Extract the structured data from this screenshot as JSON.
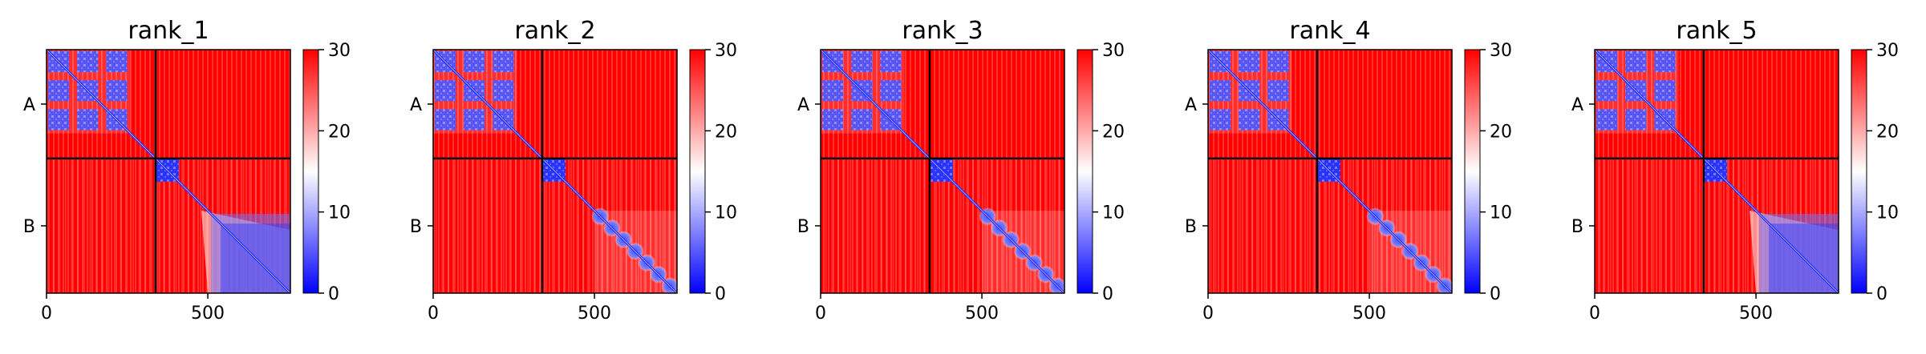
{
  "chart_data": [
    {
      "type": "heatmap",
      "title": "rank_1",
      "x_ticks": [
        {
          "value": 0,
          "label": "0"
        },
        {
          "value": 500,
          "label": "500"
        }
      ],
      "xlim": [
        0,
        756
      ],
      "ylim": [
        756,
        0
      ],
      "chain_boundary": 338,
      "y_labels": [
        {
          "label": "A",
          "position": 169
        },
        {
          "label": "B",
          "position": 547
        }
      ],
      "colorbar": {
        "min": 0,
        "max": 30,
        "ticks": [
          {
            "value": 0,
            "label": "0"
          },
          {
            "value": 10,
            "label": "10"
          },
          {
            "value": 20,
            "label": "20"
          },
          {
            "value": 30,
            "label": "30"
          }
        ],
        "colors": [
          "#0000ff",
          "#ffffff",
          "#ff0000"
        ]
      },
      "blue_regions": [
        [
          0,
          260
        ],
        [
          338,
          410
        ],
        [
          500,
          756
        ]
      ],
      "chain_b_style": "smooth"
    },
    {
      "type": "heatmap",
      "title": "rank_2",
      "x_ticks": [
        {
          "value": 0,
          "label": "0"
        },
        {
          "value": 500,
          "label": "500"
        }
      ],
      "xlim": [
        0,
        756
      ],
      "ylim": [
        756,
        0
      ],
      "chain_boundary": 338,
      "y_labels": [
        {
          "label": "A",
          "position": 169
        },
        {
          "label": "B",
          "position": 547
        }
      ],
      "colorbar": {
        "min": 0,
        "max": 30,
        "ticks": [
          {
            "value": 0,
            "label": "0"
          },
          {
            "value": 10,
            "label": "10"
          },
          {
            "value": 20,
            "label": "20"
          },
          {
            "value": 30,
            "label": "30"
          }
        ],
        "colors": [
          "#0000ff",
          "#ffffff",
          "#ff0000"
        ]
      },
      "blue_regions": [
        [
          0,
          260
        ],
        [
          338,
          410
        ],
        [
          500,
          756
        ]
      ],
      "chain_b_style": "beaded"
    },
    {
      "type": "heatmap",
      "title": "rank_3",
      "x_ticks": [
        {
          "value": 0,
          "label": "0"
        },
        {
          "value": 500,
          "label": "500"
        }
      ],
      "xlim": [
        0,
        756
      ],
      "ylim": [
        756,
        0
      ],
      "chain_boundary": 338,
      "y_labels": [
        {
          "label": "A",
          "position": 169
        },
        {
          "label": "B",
          "position": 547
        }
      ],
      "colorbar": {
        "min": 0,
        "max": 30,
        "ticks": [
          {
            "value": 0,
            "label": "0"
          },
          {
            "value": 10,
            "label": "10"
          },
          {
            "value": 20,
            "label": "20"
          },
          {
            "value": 30,
            "label": "30"
          }
        ],
        "colors": [
          "#0000ff",
          "#ffffff",
          "#ff0000"
        ]
      },
      "blue_regions": [
        [
          0,
          260
        ],
        [
          338,
          410
        ],
        [
          500,
          756
        ]
      ],
      "chain_b_style": "beaded"
    },
    {
      "type": "heatmap",
      "title": "rank_4",
      "x_ticks": [
        {
          "value": 0,
          "label": "0"
        },
        {
          "value": 500,
          "label": "500"
        }
      ],
      "xlim": [
        0,
        756
      ],
      "ylim": [
        756,
        0
      ],
      "chain_boundary": 338,
      "y_labels": [
        {
          "label": "A",
          "position": 169
        },
        {
          "label": "B",
          "position": 547
        }
      ],
      "colorbar": {
        "min": 0,
        "max": 30,
        "ticks": [
          {
            "value": 0,
            "label": "0"
          },
          {
            "value": 10,
            "label": "10"
          },
          {
            "value": 20,
            "label": "20"
          },
          {
            "value": 30,
            "label": "30"
          }
        ],
        "colors": [
          "#0000ff",
          "#ffffff",
          "#ff0000"
        ]
      },
      "blue_regions": [
        [
          0,
          260
        ],
        [
          338,
          410
        ],
        [
          500,
          756
        ]
      ],
      "chain_b_style": "beaded"
    },
    {
      "type": "heatmap",
      "title": "rank_5",
      "x_ticks": [
        {
          "value": 0,
          "label": "0"
        },
        {
          "value": 500,
          "label": "500"
        }
      ],
      "xlim": [
        0,
        756
      ],
      "ylim": [
        756,
        0
      ],
      "chain_boundary": 338,
      "y_labels": [
        {
          "label": "A",
          "position": 169
        },
        {
          "label": "B",
          "position": 547
        }
      ],
      "colorbar": {
        "min": 0,
        "max": 30,
        "ticks": [
          {
            "value": 0,
            "label": "0"
          },
          {
            "value": 10,
            "label": "10"
          },
          {
            "value": 20,
            "label": "20"
          },
          {
            "value": 30,
            "label": "30"
          }
        ],
        "colors": [
          "#0000ff",
          "#ffffff",
          "#ff0000"
        ]
      },
      "blue_regions": [
        [
          0,
          260
        ],
        [
          338,
          410
        ],
        [
          500,
          756
        ]
      ],
      "chain_b_style": "smooth"
    }
  ]
}
